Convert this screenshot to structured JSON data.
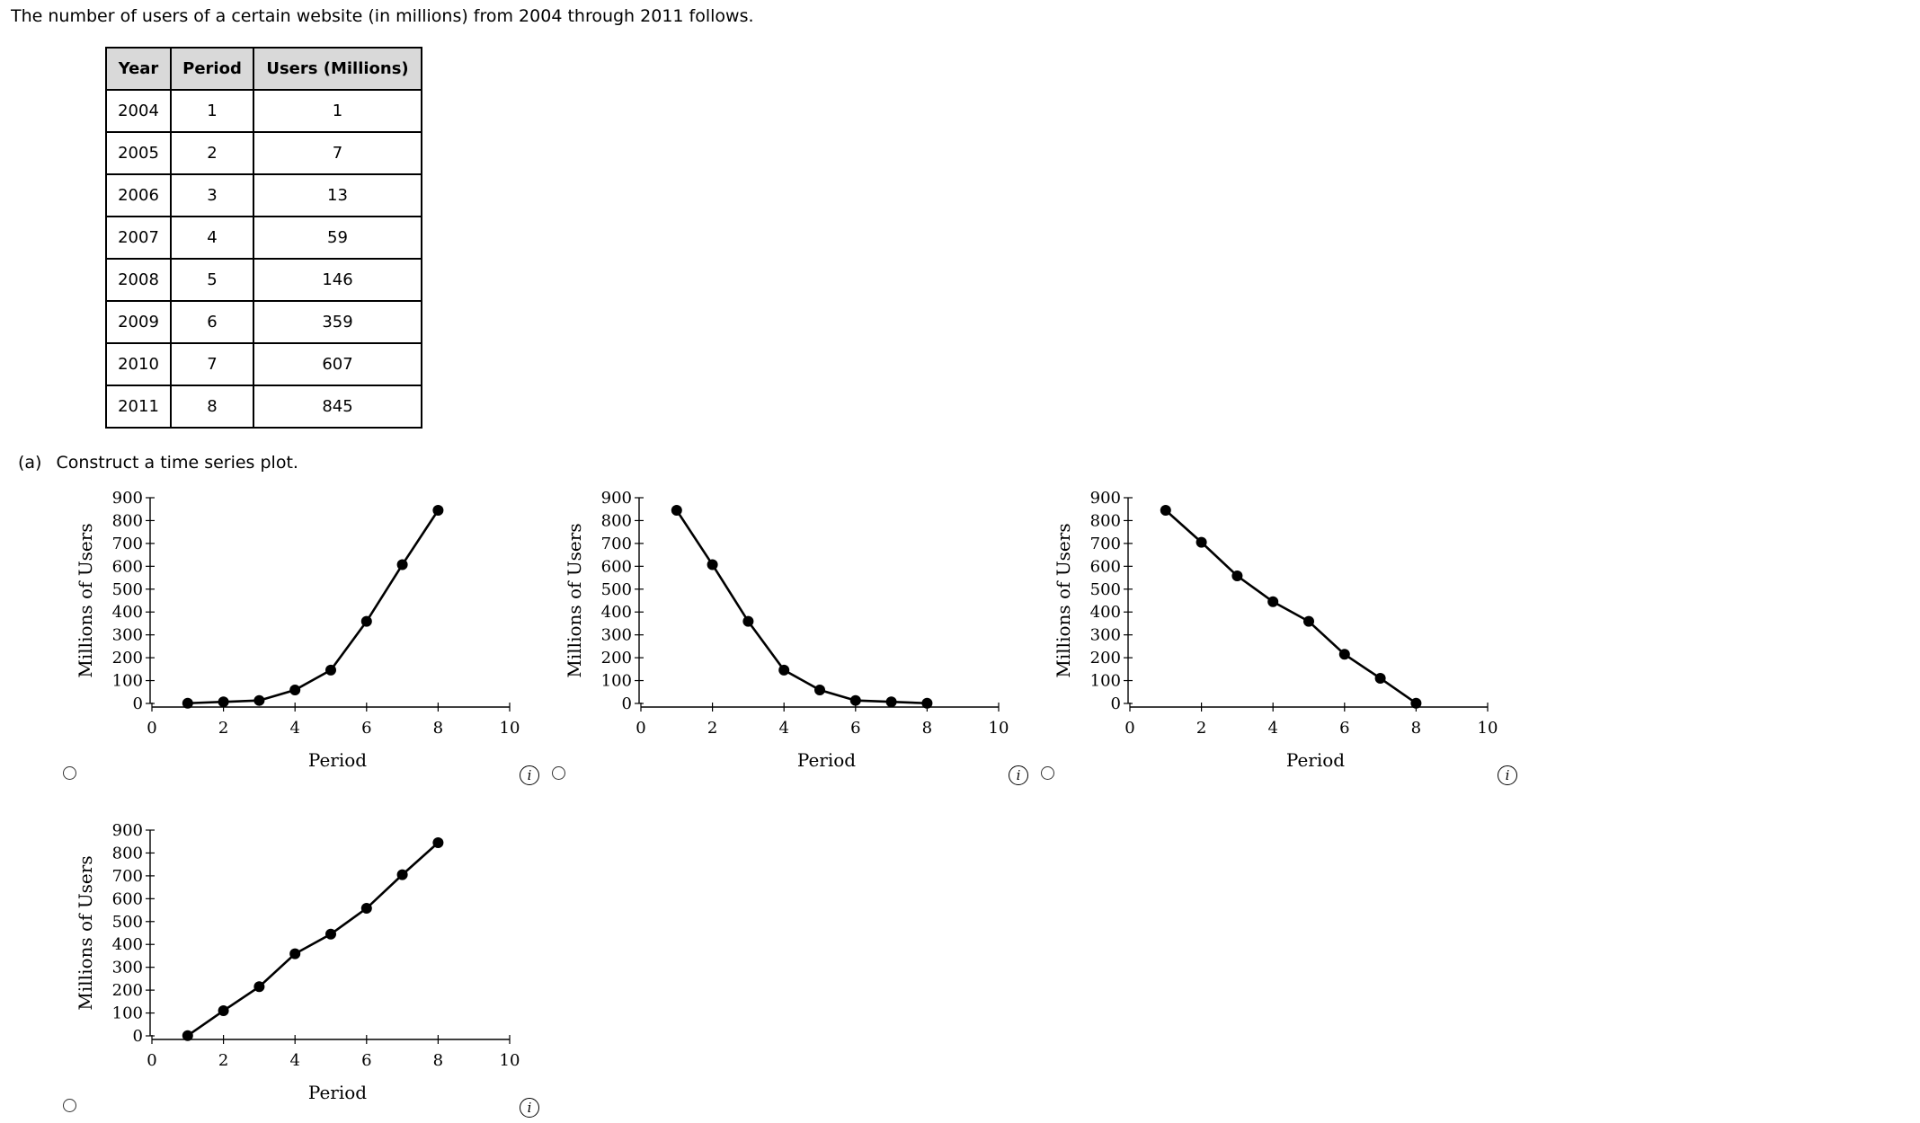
{
  "intro_text": "The number of users of a certain website (in millions) from 2004 through 2011 follows.",
  "table": {
    "headers": [
      "Year",
      "Period",
      "Users (Millions)"
    ],
    "rows": [
      [
        "2004",
        "1",
        "1"
      ],
      [
        "2005",
        "2",
        "7"
      ],
      [
        "2006",
        "3",
        "13"
      ],
      [
        "2007",
        "4",
        "59"
      ],
      [
        "2008",
        "5",
        "146"
      ],
      [
        "2009",
        "6",
        "359"
      ],
      [
        "2010",
        "7",
        "607"
      ],
      [
        "2011",
        "8",
        "845"
      ]
    ]
  },
  "part_a": {
    "letter": "(a)",
    "prompt": "Construct a time series plot."
  },
  "info_icon_glyph": "i",
  "chart_data": [
    {
      "type": "line",
      "xlabel": "Period",
      "ylabel": "Millions of Users",
      "xlim": [
        0,
        10
      ],
      "ylim": [
        0,
        900
      ],
      "xticks": [
        0,
        2,
        4,
        6,
        8,
        10
      ],
      "yticks": [
        0,
        100,
        200,
        300,
        400,
        500,
        600,
        700,
        800,
        900
      ],
      "grid": false,
      "x": [
        1,
        2,
        3,
        4,
        5,
        6,
        7,
        8
      ],
      "y": [
        1,
        7,
        13,
        59,
        146,
        359,
        607,
        845
      ]
    },
    {
      "type": "line",
      "xlabel": "Period",
      "ylabel": "Millions of Users",
      "xlim": [
        0,
        10
      ],
      "ylim": [
        0,
        900
      ],
      "xticks": [
        0,
        2,
        4,
        6,
        8,
        10
      ],
      "yticks": [
        0,
        100,
        200,
        300,
        400,
        500,
        600,
        700,
        800,
        900
      ],
      "grid": false,
      "x": [
        1,
        2,
        3,
        4,
        5,
        6,
        7,
        8
      ],
      "y": [
        845,
        607,
        359,
        146,
        59,
        13,
        7,
        1
      ]
    },
    {
      "type": "line",
      "xlabel": "Period",
      "ylabel": "Millions of Users",
      "xlim": [
        0,
        10
      ],
      "ylim": [
        0,
        900
      ],
      "xticks": [
        0,
        2,
        4,
        6,
        8,
        10
      ],
      "yticks": [
        0,
        100,
        200,
        300,
        400,
        500,
        600,
        700,
        800,
        900
      ],
      "grid": false,
      "x": [
        1,
        2,
        3,
        4,
        5,
        6,
        7,
        8
      ],
      "y": [
        845,
        705,
        558,
        445,
        359,
        215,
        110,
        1
      ]
    },
    {
      "type": "line",
      "xlabel": "Period",
      "ylabel": "Millions of Users",
      "xlim": [
        0,
        10
      ],
      "ylim": [
        0,
        900
      ],
      "xticks": [
        0,
        2,
        4,
        6,
        8,
        10
      ],
      "yticks": [
        0,
        100,
        200,
        300,
        400,
        500,
        600,
        700,
        800,
        900
      ],
      "grid": false,
      "x": [
        1,
        2,
        3,
        4,
        5,
        6,
        7,
        8
      ],
      "y": [
        1,
        110,
        215,
        359,
        445,
        558,
        705,
        845
      ]
    }
  ]
}
